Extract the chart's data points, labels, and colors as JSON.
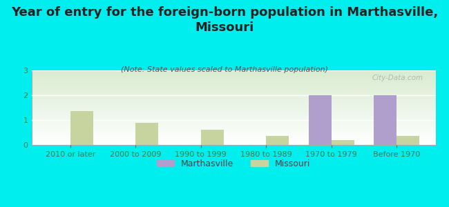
{
  "title": "Year of entry for the foreign-born population in Marthasville,\nMissouri",
  "subtitle": "(Note: State values scaled to Marthasville population)",
  "categories": [
    "2010 or later",
    "2000 to 2009",
    "1990 to 1999",
    "1980 to 1989",
    "1970 to 1979",
    "Before 1970"
  ],
  "marthasville_values": [
    0,
    0,
    0,
    0,
    2,
    2
  ],
  "missouri_values": [
    1.35,
    0.9,
    0.6,
    0.35,
    0.2,
    0.35
  ],
  "marthasville_color": "#b09fcc",
  "missouri_color": "#c8d4a0",
  "background_color": "#00eeee",
  "watermark": "City-Data.com",
  "ylim": [
    0,
    3
  ],
  "yticks": [
    0,
    1,
    2,
    3
  ],
  "bar_width": 0.35,
  "title_fontsize": 13,
  "subtitle_fontsize": 8,
  "tick_fontsize": 8,
  "legend_fontsize": 9
}
